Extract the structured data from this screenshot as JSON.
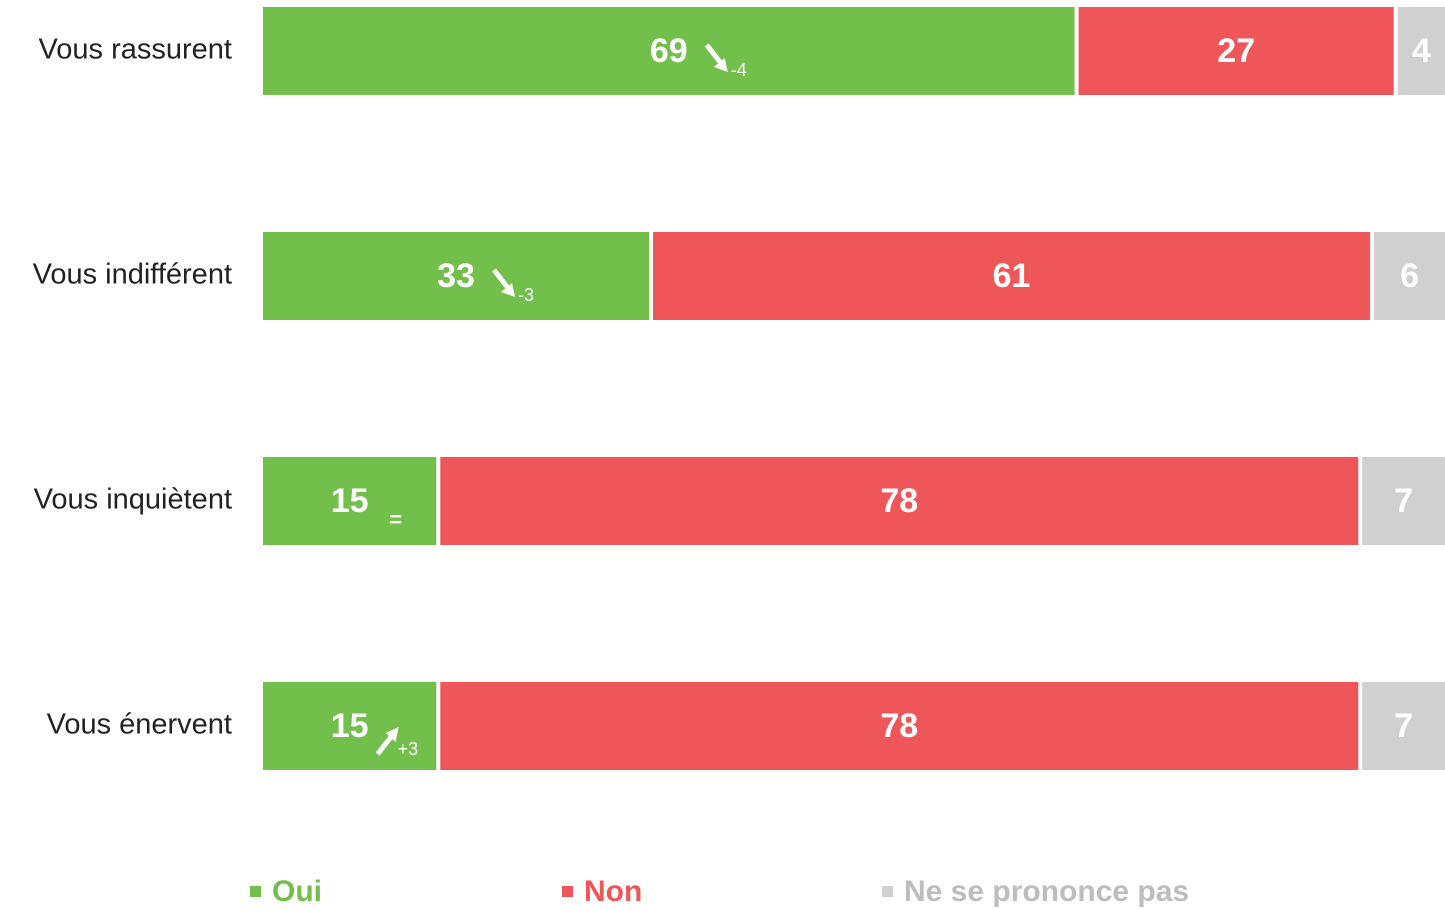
{
  "chart_data": {
    "type": "stacked-bar-horizontal",
    "categories": [
      "Vous rassurent",
      "Vous indifférent",
      "Vous inquiètent",
      "Vous énervent"
    ],
    "series": [
      {
        "name": "Oui",
        "color": "#72bf4c",
        "values": [
          69,
          33,
          15,
          15
        ]
      },
      {
        "name": "Non",
        "color": "#ef5659",
        "values": [
          27,
          61,
          78,
          78
        ]
      },
      {
        "name": "Ne se prononce pas",
        "color": "#d0d0d0",
        "values": [
          4,
          6,
          7,
          7
        ]
      }
    ],
    "changes": [
      {
        "value": -4,
        "label": "-4"
      },
      {
        "value": -3,
        "label": "-3"
      },
      {
        "value": 0,
        "label": "="
      },
      {
        "value": 3,
        "label": "+3"
      }
    ],
    "xlim": [
      0,
      100
    ],
    "legend": "bottom"
  }
}
